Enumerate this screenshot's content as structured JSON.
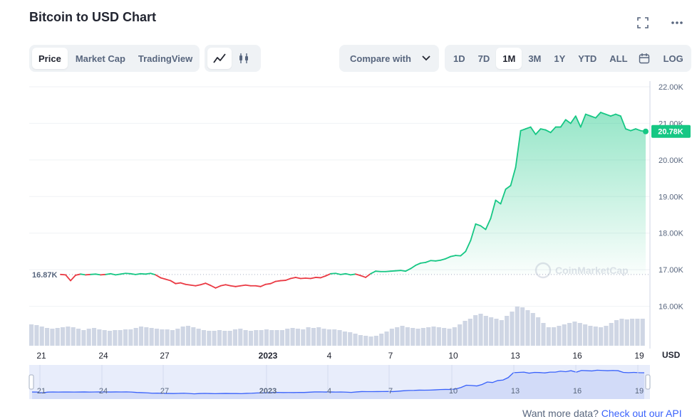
{
  "header": {
    "title": "Bitcoin to USD Chart"
  },
  "tabs": [
    {
      "label": "Price",
      "active": true
    },
    {
      "label": "Market Cap",
      "active": false
    },
    {
      "label": "TradingView",
      "active": false
    }
  ],
  "chart_modes": [
    {
      "icon": "line-chart-icon",
      "active": true
    },
    {
      "icon": "candlestick-icon",
      "active": false
    }
  ],
  "compare": {
    "label": "Compare with"
  },
  "ranges": [
    {
      "label": "1D",
      "active": false
    },
    {
      "label": "7D",
      "active": false
    },
    {
      "label": "1M",
      "active": true
    },
    {
      "label": "3M",
      "active": false
    },
    {
      "label": "1Y",
      "active": false
    },
    {
      "label": "YTD",
      "active": false
    },
    {
      "label": "ALL",
      "active": false
    }
  ],
  "log_label": "LOG",
  "footer": {
    "text": "Want more data?",
    "link": "Check out our API"
  },
  "chart_data": {
    "type": "line",
    "currency": "USD",
    "ylim": [
      15000,
      22000
    ],
    "y_ticks": [
      "22.00K",
      "21.00K",
      "20.00K",
      "19.00K",
      "18.00K",
      "17.00K",
      "16.00K"
    ],
    "y_tick_values": [
      22000,
      21000,
      20000,
      19000,
      18000,
      17000,
      16000
    ],
    "x_ticks": [
      "21",
      "24",
      "27",
      "2023",
      "4",
      "7",
      "10",
      "13",
      "16",
      "19"
    ],
    "reference_label": "16.87K",
    "reference_value": 16870,
    "last_price_label": "20.78K",
    "last_price_value": 20780,
    "watermark": "CoinMarketCap",
    "colors": {
      "up": "#16c784",
      "down": "#ea3943",
      "volume": "#cfd6e4",
      "navigator": "#3861fb"
    },
    "price_series": [
      16870,
      16860,
      16700,
      16850,
      16880,
      16860,
      16870,
      16880,
      16860,
      16870,
      16890,
      16860,
      16880,
      16900,
      16890,
      16870,
      16890,
      16880,
      16900,
      16860,
      16780,
      16740,
      16700,
      16620,
      16640,
      16600,
      16580,
      16560,
      16590,
      16630,
      16570,
      16500,
      16560,
      16590,
      16560,
      16540,
      16560,
      16580,
      16560,
      16560,
      16540,
      16600,
      16620,
      16680,
      16700,
      16710,
      16760,
      16790,
      16760,
      16770,
      16760,
      16790,
      16780,
      16830,
      16890,
      16900,
      16870,
      16890,
      16860,
      16880,
      16840,
      16790,
      16890,
      16960,
      16950,
      16950,
      16960,
      16970,
      16980,
      16960,
      17030,
      17120,
      17180,
      17200,
      17250,
      17240,
      17260,
      17300,
      17360,
      17390,
      17380,
      17500,
      17800,
      18250,
      18200,
      18100,
      18400,
      18900,
      18800,
      19200,
      19300,
      19800,
      20800,
      20850,
      20900,
      20700,
      20850,
      20820,
      20750,
      20900,
      20900,
      21100,
      21000,
      21200,
      20900,
      21250,
      21200,
      21150,
      21300,
      21250,
      21200,
      21250,
      21200,
      20850,
      20800,
      20850,
      20800,
      20780
    ],
    "volume_series": [
      30,
      29,
      27,
      25,
      24,
      25,
      26,
      27,
      26,
      24,
      22,
      24,
      25,
      23,
      22,
      21,
      22,
      22,
      23,
      23,
      25,
      27,
      26,
      25,
      24,
      23,
      23,
      22,
      24,
      27,
      28,
      26,
      24,
      22,
      21,
      21,
      22,
      21,
      21,
      23,
      24,
      22,
      21,
      22,
      22,
      23,
      22,
      22,
      22,
      24,
      25,
      24,
      23,
      26,
      25,
      26,
      24,
      23,
      23,
      22,
      20,
      19,
      17,
      15,
      14,
      13,
      14,
      17,
      20,
      24,
      26,
      28,
      26,
      25,
      24,
      25,
      26,
      27,
      26,
      25,
      24,
      26,
      30,
      35,
      38,
      43,
      45,
      42,
      40,
      38,
      36,
      42,
      48,
      55,
      54,
      50,
      46,
      40,
      32,
      26,
      26,
      28,
      30,
      32,
      34,
      32,
      30,
      28,
      27,
      26,
      28,
      32,
      36,
      38,
      37,
      38,
      38,
      38
    ]
  }
}
